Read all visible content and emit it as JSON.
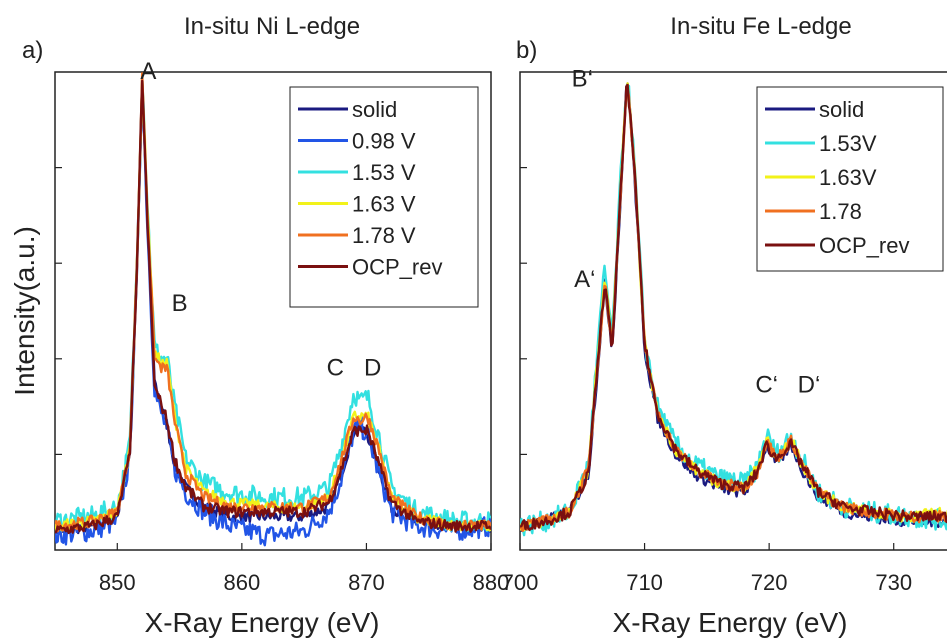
{
  "chart_data": [
    {
      "type": "line",
      "panel_label": "a)",
      "title": "In-situ Ni L-edge",
      "xlabel": "X-Ray Energy (eV)",
      "ylabel": "Intensity(a.u.)",
      "xlim": [
        845,
        880
      ],
      "ylim": [
        0,
        1.0
      ],
      "x_ticks": [
        850,
        860,
        870,
        880
      ],
      "y_ticks": [
        0.2,
        0.4,
        0.6,
        0.8
      ],
      "y_tick_labels_shown": false,
      "grid": false,
      "legend": "top-right",
      "annotations": [
        {
          "text": "A",
          "x": 852.5,
          "y": 0.985
        },
        {
          "text": "B",
          "x": 855.0,
          "y": 0.5
        },
        {
          "text": "C",
          "x": 867.5,
          "y": 0.365
        },
        {
          "text": "D",
          "x": 870.5,
          "y": 0.365
        }
      ],
      "series": [
        {
          "name": "solid",
          "color": "#1a1a80",
          "profile": "ni_low",
          "x": [
            845,
            848,
            850,
            851,
            851.6,
            852,
            852.4,
            853,
            853.6,
            854,
            854.6,
            855.5,
            857,
            859,
            862,
            865,
            867,
            868,
            869,
            869.5,
            870.1,
            871,
            872,
            874,
            877,
            880
          ],
          "y": [
            0.04,
            0.05,
            0.07,
            0.2,
            0.6,
            0.98,
            0.7,
            0.35,
            0.3,
            0.26,
            0.18,
            0.13,
            0.09,
            0.07,
            0.07,
            0.07,
            0.09,
            0.16,
            0.25,
            0.26,
            0.24,
            0.17,
            0.09,
            0.06,
            0.05,
            0.05
          ]
        },
        {
          "name": "0.98 V",
          "color": "#2255e6",
          "profile": "ni_low",
          "x": [
            845,
            848,
            850,
            851,
            851.6,
            852,
            852.4,
            853,
            853.6,
            854,
            854.6,
            855.5,
            857,
            859,
            862,
            865,
            867,
            868,
            869,
            869.5,
            870.1,
            871,
            872,
            874,
            877,
            880
          ],
          "y": [
            0.03,
            0.04,
            0.06,
            0.19,
            0.6,
            0.98,
            0.69,
            0.33,
            0.28,
            0.25,
            0.17,
            0.12,
            0.08,
            0.05,
            0.03,
            0.04,
            0.08,
            0.15,
            0.25,
            0.26,
            0.24,
            0.16,
            0.08,
            0.05,
            0.04,
            0.05
          ]
        },
        {
          "name": "1.53 V",
          "color": "#33e0e0",
          "profile": "ni_high",
          "x": [
            845,
            848,
            850,
            851,
            851.6,
            852,
            852.4,
            853,
            853.6,
            854,
            854.6,
            855.5,
            857,
            859,
            862,
            865,
            867,
            868,
            869,
            869.5,
            870.1,
            871,
            872,
            874,
            877,
            880
          ],
          "y": [
            0.06,
            0.07,
            0.09,
            0.22,
            0.62,
            1.0,
            0.74,
            0.42,
            0.4,
            0.4,
            0.3,
            0.19,
            0.14,
            0.12,
            0.11,
            0.11,
            0.13,
            0.22,
            0.33,
            0.31,
            0.32,
            0.24,
            0.13,
            0.08,
            0.06,
            0.06
          ]
        },
        {
          "name": "1.63 V",
          "color": "#f2f21a",
          "profile": "ni_high",
          "x": [
            845,
            848,
            850,
            851,
            851.6,
            852,
            852.4,
            853,
            853.6,
            854,
            854.6,
            855.5,
            857,
            859,
            862,
            865,
            867,
            868,
            869,
            869.5,
            870.1,
            871,
            872,
            874,
            877,
            880
          ],
          "y": [
            0.05,
            0.06,
            0.08,
            0.21,
            0.61,
            0.99,
            0.73,
            0.41,
            0.39,
            0.39,
            0.28,
            0.17,
            0.12,
            0.1,
            0.09,
            0.09,
            0.11,
            0.19,
            0.28,
            0.28,
            0.28,
            0.21,
            0.11,
            0.07,
            0.05,
            0.05
          ]
        },
        {
          "name": "1.78 V",
          "color": "#f07020",
          "profile": "ni_high",
          "x": [
            845,
            848,
            850,
            851,
            851.6,
            852,
            852.4,
            853,
            853.6,
            854,
            854.6,
            855.5,
            857,
            859,
            862,
            865,
            867,
            868,
            869,
            869.5,
            870.1,
            871,
            872,
            874,
            877,
            880
          ],
          "y": [
            0.05,
            0.06,
            0.08,
            0.21,
            0.61,
            0.99,
            0.72,
            0.4,
            0.38,
            0.38,
            0.27,
            0.16,
            0.11,
            0.09,
            0.09,
            0.09,
            0.11,
            0.19,
            0.28,
            0.27,
            0.28,
            0.21,
            0.11,
            0.07,
            0.05,
            0.05
          ]
        },
        {
          "name": "OCP_rev",
          "color": "#7a1010",
          "profile": "ni_low",
          "x": [
            845,
            848,
            850,
            851,
            851.6,
            852,
            852.4,
            853,
            853.6,
            854,
            854.6,
            855.5,
            857,
            859,
            862,
            865,
            867,
            868,
            869,
            869.5,
            870.1,
            871,
            872,
            874,
            877,
            880
          ],
          "y": [
            0.04,
            0.05,
            0.07,
            0.2,
            0.6,
            0.99,
            0.7,
            0.34,
            0.3,
            0.27,
            0.19,
            0.13,
            0.09,
            0.08,
            0.08,
            0.08,
            0.1,
            0.17,
            0.25,
            0.25,
            0.25,
            0.18,
            0.1,
            0.06,
            0.05,
            0.05
          ]
        }
      ]
    },
    {
      "type": "line",
      "panel_label": "b)",
      "title": "In-situ Fe L-edge",
      "xlabel": "X-Ray Energy (eV)",
      "ylabel": "",
      "xlim": [
        700,
        735
      ],
      "ylim": [
        0,
        1.0
      ],
      "x_ticks": [
        700,
        710,
        720,
        730
      ],
      "y_ticks": [
        0.2,
        0.4,
        0.6,
        0.8
      ],
      "y_tick_labels_shown": false,
      "grid": false,
      "legend": "top-right",
      "annotations": [
        {
          "text": "B‘",
          "x": 705.0,
          "y": 0.97
        },
        {
          "text": "A‘",
          "x": 705.2,
          "y": 0.55
        },
        {
          "text": "C‘",
          "x": 719.8,
          "y": 0.33
        },
        {
          "text": "D‘",
          "x": 723.2,
          "y": 0.33
        }
      ],
      "series": [
        {
          "name": "solid",
          "color": "#1a1a80",
          "x": [
            700,
            702,
            704,
            705.5,
            706.3,
            706.8,
            707.4,
            708,
            708.6,
            709.2,
            710,
            711,
            712.5,
            714,
            716,
            718,
            719,
            719.8,
            720.6,
            721.2,
            721.8,
            722.6,
            724,
            726,
            728,
            731,
            735
          ],
          "y": [
            0.05,
            0.06,
            0.08,
            0.16,
            0.4,
            0.56,
            0.42,
            0.7,
            1.0,
            0.78,
            0.42,
            0.28,
            0.2,
            0.16,
            0.13,
            0.12,
            0.16,
            0.22,
            0.18,
            0.2,
            0.22,
            0.17,
            0.11,
            0.08,
            0.07,
            0.06,
            0.06
          ]
        },
        {
          "name": "1.53V",
          "color": "#33e0e0",
          "x": [
            700,
            702,
            704,
            705.5,
            706.3,
            706.8,
            707.4,
            708,
            708.6,
            709.2,
            710,
            711,
            712.5,
            714,
            716,
            718,
            719,
            719.8,
            720.6,
            721.2,
            721.8,
            722.6,
            724,
            726,
            728,
            731,
            735
          ],
          "y": [
            0.05,
            0.06,
            0.08,
            0.18,
            0.44,
            0.59,
            0.44,
            0.74,
            1.0,
            0.8,
            0.44,
            0.3,
            0.22,
            0.18,
            0.15,
            0.14,
            0.17,
            0.24,
            0.2,
            0.22,
            0.24,
            0.19,
            0.12,
            0.09,
            0.08,
            0.07,
            0.06
          ]
        },
        {
          "name": "1.63V",
          "color": "#f2f21a",
          "x": [
            700,
            702,
            704,
            705.5,
            706.3,
            706.8,
            707.4,
            708,
            708.6,
            709.2,
            710,
            711,
            712.5,
            714,
            716,
            718,
            719,
            719.8,
            720.6,
            721.2,
            721.8,
            722.6,
            724,
            726,
            728,
            731,
            735
          ],
          "y": [
            0.05,
            0.06,
            0.08,
            0.17,
            0.42,
            0.57,
            0.43,
            0.72,
            0.99,
            0.79,
            0.43,
            0.29,
            0.21,
            0.17,
            0.14,
            0.13,
            0.17,
            0.23,
            0.19,
            0.21,
            0.23,
            0.18,
            0.12,
            0.09,
            0.08,
            0.07,
            0.08
          ]
        },
        {
          "name": "1.78",
          "color": "#f07020",
          "x": [
            700,
            702,
            704,
            705.5,
            706.3,
            706.8,
            707.4,
            708,
            708.6,
            709.2,
            710,
            711,
            712.5,
            714,
            716,
            718,
            719,
            719.8,
            720.6,
            721.2,
            721.8,
            722.6,
            724,
            726,
            728,
            731,
            735
          ],
          "y": [
            0.05,
            0.06,
            0.08,
            0.17,
            0.41,
            0.56,
            0.43,
            0.71,
            0.99,
            0.79,
            0.43,
            0.29,
            0.21,
            0.17,
            0.14,
            0.13,
            0.16,
            0.23,
            0.19,
            0.21,
            0.23,
            0.18,
            0.12,
            0.09,
            0.08,
            0.07,
            0.07
          ]
        },
        {
          "name": "OCP_rev",
          "color": "#7a1010",
          "x": [
            700,
            702,
            704,
            705.5,
            706.3,
            706.8,
            707.4,
            708,
            708.6,
            709.2,
            710,
            711,
            712.5,
            714,
            716,
            718,
            719,
            719.8,
            720.6,
            721.2,
            721.8,
            722.6,
            724,
            726,
            728,
            731,
            735
          ],
          "y": [
            0.05,
            0.06,
            0.08,
            0.16,
            0.41,
            0.56,
            0.42,
            0.71,
            0.99,
            0.79,
            0.43,
            0.29,
            0.21,
            0.17,
            0.14,
            0.13,
            0.16,
            0.22,
            0.19,
            0.21,
            0.22,
            0.18,
            0.12,
            0.09,
            0.08,
            0.07,
            0.07
          ]
        }
      ]
    }
  ]
}
